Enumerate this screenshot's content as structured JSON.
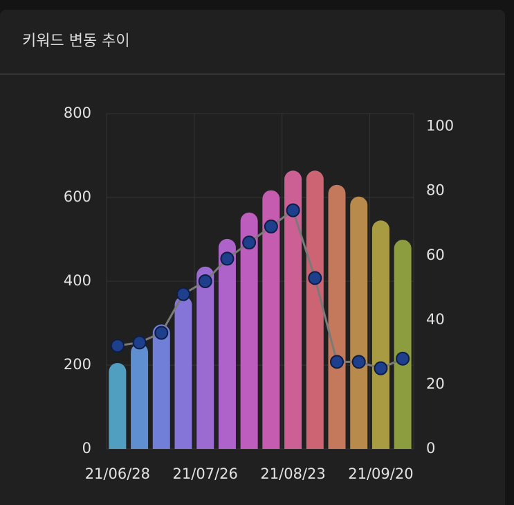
{
  "chart_data": {
    "type": "bar-line",
    "title": "키워드 변동 추이",
    "categories": [
      "21/06/28",
      null,
      null,
      null,
      "21/07/26",
      null,
      null,
      null,
      "21/08/23",
      null,
      null,
      null,
      "21/09/20",
      null
    ],
    "series": [
      {
        "type": "bar",
        "values": [
          205,
          251,
          297,
          364,
          435,
          501,
          564,
          617,
          664,
          664,
          630,
          602,
          545,
          499
        ],
        "colors": [
          "#519fc0",
          "#5f8fd0",
          "#717fd9",
          "#8675d9",
          "#9b6bd2",
          "#ae63ca",
          "#bd5dbe",
          "#c65caf",
          "#cc5f93",
          "#cc6474",
          "#c4785c",
          "#b88b4c",
          "#a89b42",
          "#8b9d3e"
        ]
      },
      {
        "type": "line",
        "axis": "y2",
        "color": "#7a7a7a",
        "marker_color": "#1d3f8c",
        "values": [
          32,
          33,
          36,
          48,
          52,
          59,
          64,
          69,
          74,
          53,
          27,
          27,
          25,
          28
        ]
      }
    ],
    "ylim": [
      0,
      800
    ],
    "yticks": [
      0,
      200,
      400,
      600,
      800
    ],
    "y2lim": [
      0,
      104
    ],
    "y2ticks": [
      0,
      20,
      40,
      60,
      80,
      100
    ],
    "grid": true
  }
}
